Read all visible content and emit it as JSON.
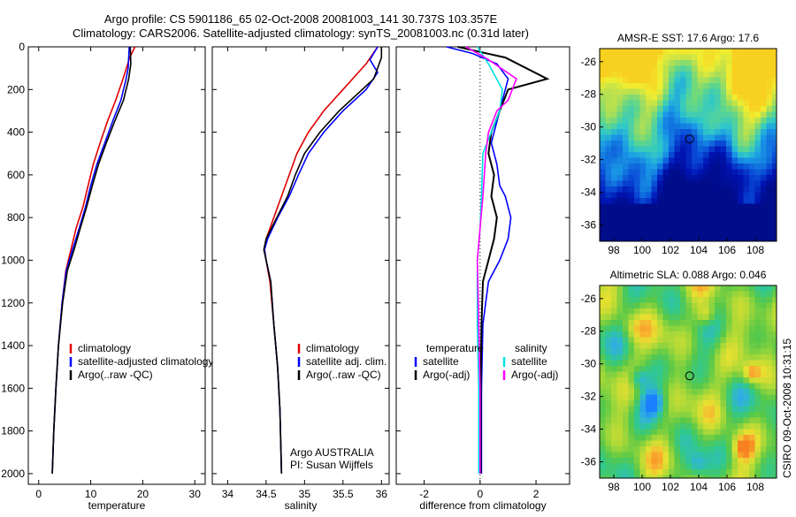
{
  "header": {
    "line1": "Argo profile: CS 5901186_65 02-Oct-2008 20081003_141 30.737S 103.357E",
    "line2": "Climatology: CARS2006. Satellite-adjusted climatology: synTS_20081003.nc (0.31d later)"
  },
  "side_label": "CSIRO 09-Oct-2008 10:31:15",
  "colors": {
    "red": "#e00000",
    "blue": "#0000ff",
    "black": "#000000",
    "cyan": "#00e0e0",
    "magenta": "#ff00ff"
  },
  "chart_data": [
    {
      "type": "line",
      "xlabel": "temperature",
      "xlim": [
        -2,
        32
      ],
      "ylim": [
        0,
        2050
      ],
      "xticks": [
        0,
        10,
        20,
        30
      ],
      "yticks": [
        0,
        200,
        400,
        600,
        800,
        1000,
        1200,
        1400,
        1600,
        1800,
        2000
      ],
      "legend": [
        "climatology",
        "satellite-adjusted climatology",
        "Argo(..raw -QC)"
      ],
      "series": [
        {
          "name": "climatology",
          "color": "#e00000",
          "points": [
            [
              18.5,
              0
            ],
            [
              17.5,
              50
            ],
            [
              16.2,
              150
            ],
            [
              14.8,
              250
            ],
            [
              13.2,
              350
            ],
            [
              11.8,
              450
            ],
            [
              10.5,
              550
            ],
            [
              9.5,
              650
            ],
            [
              8.5,
              750
            ],
            [
              7.2,
              850
            ],
            [
              6.2,
              950
            ],
            [
              5.2,
              1050
            ],
            [
              4.5,
              1200
            ],
            [
              3.8,
              1400
            ],
            [
              3.3,
              1600
            ],
            [
              2.9,
              1800
            ],
            [
              2.6,
              2000
            ]
          ]
        },
        {
          "name": "satellite-adjusted climatology",
          "color": "#0000ff",
          "points": [
            [
              17.4,
              0
            ],
            [
              17.2,
              100
            ],
            [
              16.8,
              150
            ],
            [
              15.8,
              250
            ],
            [
              14.2,
              350
            ],
            [
              12.7,
              450
            ],
            [
              11.2,
              550
            ],
            [
              10,
              650
            ],
            [
              9,
              750
            ],
            [
              7.8,
              850
            ],
            [
              6.5,
              950
            ],
            [
              5.3,
              1050
            ],
            [
              4.5,
              1200
            ],
            [
              3.8,
              1400
            ],
            [
              3.3,
              1600
            ],
            [
              2.9,
              1800
            ],
            [
              2.6,
              2000
            ]
          ]
        },
        {
          "name": "Argo(..raw -QC)",
          "color": "#000000",
          "points": [
            [
              17.6,
              0
            ],
            [
              17.7,
              80
            ],
            [
              17.3,
              150
            ],
            [
              16.3,
              250
            ],
            [
              14.6,
              350
            ],
            [
              13,
              450
            ],
            [
              11.5,
              550
            ],
            [
              10.3,
              650
            ],
            [
              9.2,
              750
            ],
            [
              8,
              850
            ],
            [
              6.8,
              950
            ],
            [
              5.5,
              1050
            ],
            [
              4.6,
              1200
            ],
            [
              3.8,
              1400
            ],
            [
              3.3,
              1600
            ],
            [
              2.9,
              1800
            ],
            [
              2.6,
              2000
            ]
          ]
        }
      ]
    },
    {
      "type": "line",
      "xlabel": "salinity",
      "xlim": [
        33.8,
        36.1
      ],
      "ylim": [
        0,
        2050
      ],
      "xticks": [
        34,
        34.5,
        35,
        35.5,
        36
      ],
      "legend": [
        "climatology",
        "satellite adj. clim.",
        "Argo(..raw -QC)"
      ],
      "annotation": [
        "Argo AUSTRALIA",
        "PI: Susan Wijffels"
      ],
      "series": [
        {
          "name": "climatology",
          "color": "#e00000",
          "points": [
            [
              35.95,
              0
            ],
            [
              35.8,
              80
            ],
            [
              35.5,
              200
            ],
            [
              35.25,
              300
            ],
            [
              35.05,
              400
            ],
            [
              34.9,
              500
            ],
            [
              34.8,
              600
            ],
            [
              34.7,
              700
            ],
            [
              34.6,
              800
            ],
            [
              34.5,
              900
            ],
            [
              34.48,
              950
            ],
            [
              34.5,
              1000
            ],
            [
              34.55,
              1100
            ],
            [
              34.6,
              1300
            ],
            [
              34.65,
              1500
            ],
            [
              34.68,
              1700
            ],
            [
              34.7,
              2000
            ]
          ]
        },
        {
          "name": "satellite adj. clim.",
          "color": "#0000ff",
          "points": [
            [
              35.95,
              0
            ],
            [
              35.85,
              60
            ],
            [
              35.95,
              120
            ],
            [
              35.8,
              200
            ],
            [
              35.5,
              300
            ],
            [
              35.25,
              400
            ],
            [
              35.05,
              500
            ],
            [
              34.92,
              600
            ],
            [
              34.8,
              700
            ],
            [
              34.65,
              800
            ],
            [
              34.52,
              900
            ],
            [
              34.48,
              950
            ],
            [
              34.5,
              1000
            ],
            [
              34.56,
              1100
            ],
            [
              34.6,
              1300
            ],
            [
              34.65,
              1500
            ],
            [
              34.68,
              1700
            ],
            [
              34.7,
              2000
            ]
          ]
        },
        {
          "name": "Argo(..raw -QC)",
          "color": "#000000",
          "points": [
            [
              36,
              0
            ],
            [
              36,
              50
            ],
            [
              35.9,
              150
            ],
            [
              35.75,
              200
            ],
            [
              35.45,
              300
            ],
            [
              35.2,
              400
            ],
            [
              35,
              500
            ],
            [
              34.88,
              600
            ],
            [
              34.78,
              700
            ],
            [
              34.64,
              800
            ],
            [
              34.5,
              900
            ],
            [
              34.47,
              950
            ],
            [
              34.5,
              1000
            ],
            [
              34.56,
              1100
            ],
            [
              34.6,
              1300
            ],
            [
              34.65,
              1500
            ],
            [
              34.68,
              1700
            ],
            [
              34.7,
              2000
            ]
          ]
        }
      ]
    },
    {
      "type": "line",
      "xlabel": "difference from climatology",
      "xlim": [
        -3,
        3.2
      ],
      "xticks": [
        -2,
        0,
        2
      ],
      "legend_headings": [
        "temperature",
        "salinity"
      ],
      "legend": [
        "satellite",
        "Argo(-adj)",
        "satellite",
        "Argo(-adj)"
      ],
      "series": [
        {
          "name": "satellite",
          "group": "temperature",
          "color": "#0000ff",
          "points": [
            [
              -1.2,
              0
            ],
            [
              -0.3,
              30
            ],
            [
              0.6,
              80
            ],
            [
              1.0,
              150
            ],
            [
              0.8,
              250
            ],
            [
              0.6,
              350
            ],
            [
              0.4,
              450
            ],
            [
              0.6,
              550
            ],
            [
              0.7,
              650
            ],
            [
              0.9,
              700
            ],
            [
              1.1,
              800
            ],
            [
              1.0,
              900
            ],
            [
              0.7,
              1000
            ],
            [
              0.3,
              1100
            ],
            [
              0.1,
              1300
            ],
            [
              0.05,
              1600
            ],
            [
              0.05,
              2000
            ]
          ]
        },
        {
          "name": "Argo(-adj)",
          "group": "temperature",
          "color": "#000000",
          "points": [
            [
              -0.8,
              0
            ],
            [
              0.2,
              30
            ],
            [
              0.9,
              50
            ],
            [
              2.4,
              150
            ],
            [
              1.0,
              200
            ],
            [
              0.7,
              300
            ],
            [
              0.4,
              400
            ],
            [
              0.3,
              500
            ],
            [
              0.5,
              600
            ],
            [
              0.4,
              700
            ],
            [
              0.6,
              800
            ],
            [
              0.5,
              900
            ],
            [
              0.3,
              1000
            ],
            [
              0.1,
              1100
            ],
            [
              0.05,
              1300
            ],
            [
              0.02,
              1600
            ],
            [
              0.02,
              2000
            ]
          ]
        },
        {
          "name": "satellite",
          "group": "salinity",
          "color": "#00e0e0",
          "points": [
            [
              -0.1,
              0
            ],
            [
              0.3,
              80
            ],
            [
              0.8,
              200
            ],
            [
              0.7,
              300
            ],
            [
              0.4,
              400
            ],
            [
              0.1,
              500
            ],
            [
              0.05,
              700
            ],
            [
              0,
              850
            ],
            [
              -0.1,
              1000
            ],
            [
              -0.1,
              1300
            ],
            [
              -0.05,
              1600
            ],
            [
              -0.05,
              2000
            ]
          ]
        },
        {
          "name": "Argo(-adj)",
          "group": "salinity",
          "color": "#ff00ff",
          "points": [
            [
              -0.5,
              0
            ],
            [
              0.3,
              60
            ],
            [
              1.3,
              150
            ],
            [
              1.0,
              250
            ],
            [
              0.6,
              300
            ],
            [
              0.3,
              400
            ],
            [
              0.2,
              500
            ],
            [
              0.1,
              700
            ],
            [
              0,
              850
            ],
            [
              -0.1,
              1000
            ],
            [
              -0.05,
              1300
            ],
            [
              0,
              1600
            ],
            [
              0,
              2000
            ]
          ]
        }
      ]
    },
    {
      "type": "heatmap",
      "title": "AMSR-E SST: 17.6 Argo: 17.6",
      "xlim": [
        97,
        109.5
      ],
      "ylim": [
        -37,
        -25.2
      ],
      "xticks": [
        98,
        100,
        102,
        104,
        106,
        108
      ],
      "yticks": [
        -26,
        -28,
        -30,
        -32,
        -34,
        -36
      ],
      "marker": [
        103.357,
        -30.737
      ]
    },
    {
      "type": "heatmap",
      "title": "Altimetric SLA: 0.088 Argo: 0.046",
      "xlim": [
        97,
        109.5
      ],
      "ylim": [
        -37,
        -25.2
      ],
      "xticks": [
        98,
        100,
        102,
        104,
        106,
        108
      ],
      "yticks": [
        -26,
        -28,
        -30,
        -32,
        -34,
        -36
      ],
      "marker": [
        103.357,
        -30.737
      ]
    }
  ]
}
